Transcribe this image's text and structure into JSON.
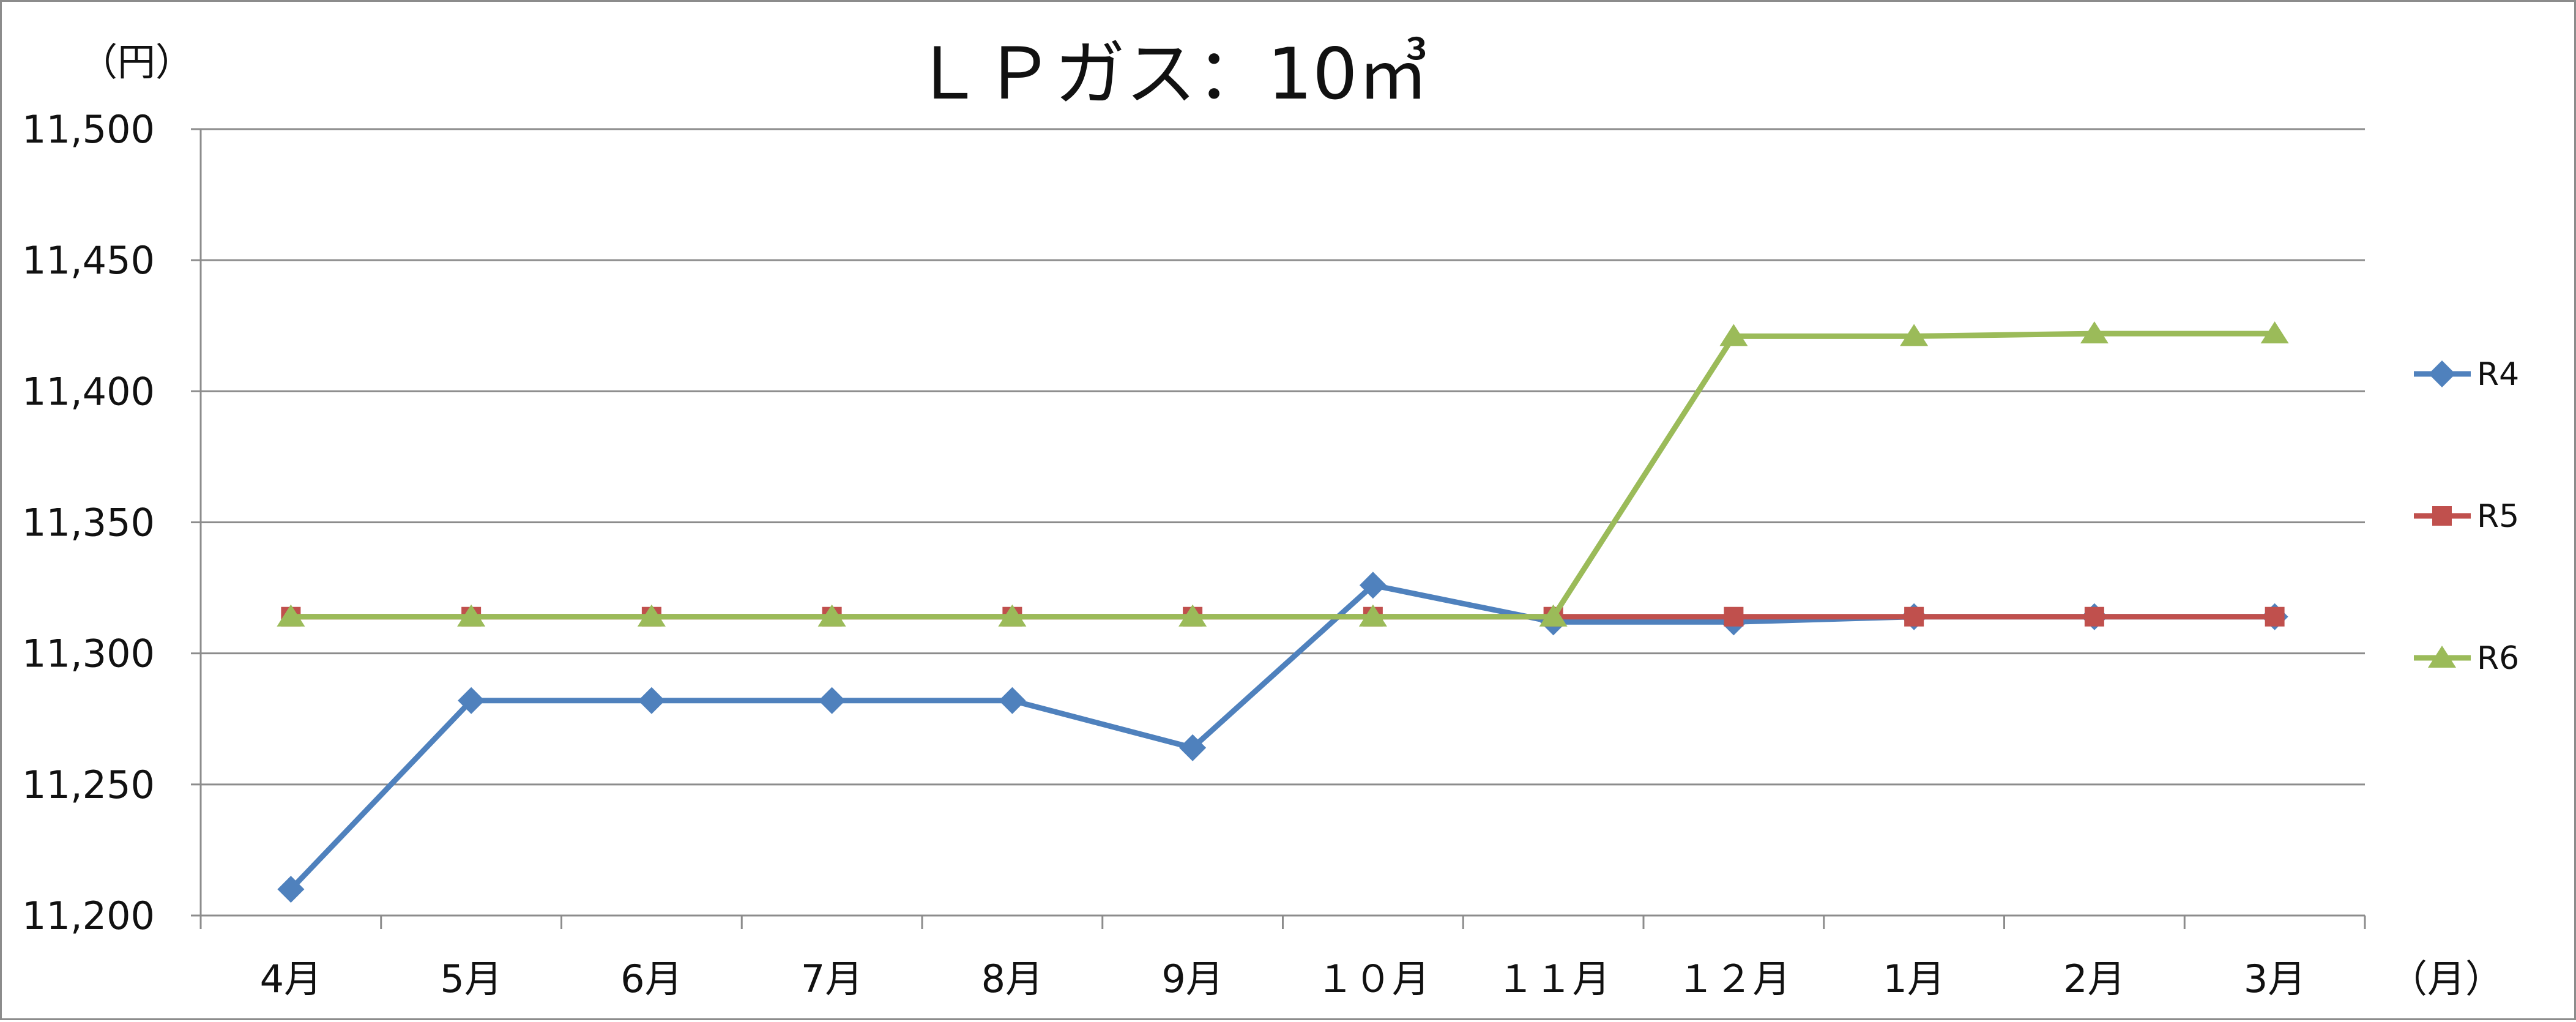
{
  "chart_data": {
    "type": "line",
    "title": "ＬＰガス：10㎥",
    "ylabel": "（円）",
    "xlabel": "（月）",
    "categories": [
      "4月",
      "5月",
      "6月",
      "7月",
      "8月",
      "9月",
      "１０月",
      "１１月",
      "１２月",
      "1月",
      "2月",
      "3月"
    ],
    "ylim": [
      11200,
      11500
    ],
    "yticks": [
      11200,
      11250,
      11300,
      11350,
      11400,
      11450,
      11500
    ],
    "ytick_labels": [
      "11,200",
      "11,250",
      "11,300",
      "11,350",
      "11,400",
      "11,450",
      "11,500"
    ],
    "grid": true,
    "legend_position": "right",
    "series": [
      {
        "name": "R4",
        "color": "#4f81bd",
        "marker": "diamond",
        "values": [
          11210,
          11282,
          11282,
          11282,
          11282,
          11264,
          11326,
          11312,
          11312,
          11314,
          11314,
          11314
        ]
      },
      {
        "name": "R5",
        "color": "#c0504d",
        "marker": "square",
        "values": [
          11314,
          11314,
          11314,
          11314,
          11314,
          11314,
          11314,
          11314,
          11314,
          11314,
          11314,
          11314
        ]
      },
      {
        "name": "R6",
        "color": "#9bbb59",
        "marker": "triangle",
        "values": [
          11314,
          11314,
          11314,
          11314,
          11314,
          11314,
          11314,
          11314,
          11421,
          11421,
          11422,
          11422
        ]
      }
    ]
  }
}
